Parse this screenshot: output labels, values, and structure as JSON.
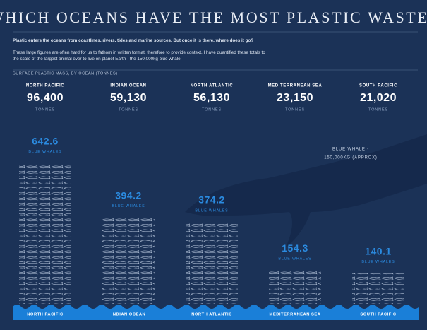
{
  "chart_data": {
    "type": "pictogram",
    "title": "WHICH OCEANS HAVE THE MOST PLASTIC WASTE?",
    "intro": "Plastic enters the oceans from coastlines, rivers, tides and marine sources. But once it is there, where does it go?",
    "context": "These large figures are often hard for us to fathom in written format, therefore to provide context, I have quantified these totals to the scale of the largest animal ever to live on planet Earth - the 150,000kg blue whale.",
    "subtitle": "SURFACE PLASTIC MASS, BY OCEAN (TONNES)",
    "annotation": [
      "BLUE WHALE -",
      "150,000KG (APPROX)"
    ],
    "categories": [
      "NORTH PACIFIC",
      "INDIAN OCEAN",
      "NORTH ATLANTIC",
      "MEDITERRANEAN SEA",
      "SOUTH PACIFIC"
    ],
    "series": [
      {
        "name": "TONNES",
        "color": "#ffffff",
        "values": [
          96400,
          59130,
          56130,
          23150,
          21020
        ],
        "value_labels": [
          "96,400",
          "59,130",
          "56,130",
          "23,150",
          "21,020"
        ]
      },
      {
        "name": "BLUE WHALES",
        "color": "#2b8be0",
        "values": [
          642.6,
          394.2,
          374.2,
          154.3,
          140.1
        ]
      }
    ]
  }
}
